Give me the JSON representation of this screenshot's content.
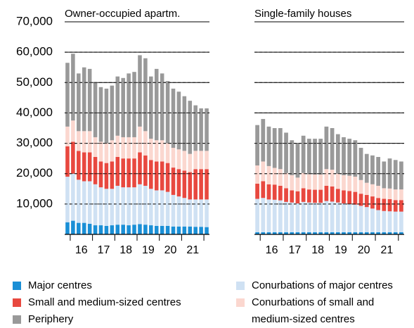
{
  "chart_data": [
    {
      "type": "stacked_bar",
      "title": "Owner-occupied apartm.",
      "categories": [
        null,
        null,
        "16",
        null,
        null,
        null,
        "17",
        null,
        null,
        null,
        "18",
        null,
        null,
        null,
        "19",
        null,
        null,
        null,
        "20",
        null,
        null,
        null,
        "21",
        null,
        null,
        null
      ],
      "ylim": [
        0,
        70000
      ],
      "yticks": [
        {
          "value": 10000,
          "label": "10,000"
        },
        {
          "value": 20000,
          "label": "20,000"
        },
        {
          "value": 30000,
          "label": "30,000"
        },
        {
          "value": 40000,
          "label": "40,000"
        },
        {
          "value": 50000,
          "label": "50,000"
        },
        {
          "value": 60000,
          "label": "60,000"
        },
        {
          "value": 70000,
          "label": "70,000"
        }
      ],
      "grid": true,
      "series": [
        {
          "name": "Major centres",
          "color": "#1a8fd6",
          "values": [
            4000,
            4500,
            3800,
            3800,
            3500,
            3000,
            3000,
            2800,
            3000,
            3200,
            3200,
            3000,
            3200,
            3400,
            3200,
            3000,
            2800,
            2800,
            2800,
            2600,
            2600,
            2600,
            2600,
            2500,
            2500,
            2400
          ]
        },
        {
          "name": "Conurbations of major centres",
          "color": "#cfe1f3",
          "values": [
            15000,
            15500,
            14200,
            13700,
            14000,
            13500,
            12500,
            12200,
            12000,
            12800,
            12300,
            12500,
            12300,
            13100,
            12800,
            12000,
            11700,
            11700,
            11200,
            10400,
            9900,
            9400,
            8900,
            9000,
            9000,
            9100
          ]
        },
        {
          "name": "Small and medium-sized centres",
          "color": "#e8483f",
          "values": [
            10000,
            10500,
            9500,
            9500,
            9500,
            9000,
            8500,
            8500,
            9000,
            9500,
            9500,
            9500,
            9500,
            10500,
            10000,
            9500,
            9500,
            9500,
            9500,
            9000,
            9000,
            9000,
            9000,
            10000,
            10000,
            10000
          ]
        },
        {
          "name": "Conurbations of small and medium-sized centres",
          "color": "#fbd7cf",
          "values": [
            6500,
            7000,
            6500,
            7000,
            7000,
            6500,
            6500,
            6500,
            7000,
            7000,
            7000,
            7000,
            7000,
            8500,
            8000,
            7000,
            7000,
            7000,
            6500,
            6500,
            6500,
            6500,
            6000,
            6000,
            6000,
            6000
          ]
        },
        {
          "name": "Periphery",
          "color": "#999999",
          "values": [
            21000,
            22000,
            19000,
            21000,
            20500,
            18000,
            18000,
            18000,
            18000,
            19500,
            19500,
            21000,
            21500,
            23500,
            24000,
            20500,
            23500,
            22000,
            20500,
            19500,
            19000,
            18000,
            17500,
            15000,
            14000,
            14000
          ]
        }
      ]
    },
    {
      "type": "stacked_bar",
      "title": "Single-family houses",
      "categories": [
        null,
        null,
        "16",
        null,
        null,
        null,
        "17",
        null,
        null,
        null,
        "18",
        null,
        null,
        null,
        "19",
        null,
        null,
        null,
        "20",
        null,
        null,
        null,
        "21",
        null,
        null,
        null
      ],
      "ylim": [
        0,
        70000
      ],
      "grid": true,
      "series": [
        {
          "color": "#1a8fd6",
          "values": [
            700,
            700,
            700,
            700,
            700,
            700,
            700,
            700,
            700,
            700,
            700,
            700,
            700,
            700,
            700,
            700,
            700,
            700,
            700,
            700,
            700,
            700,
            700,
            700,
            700,
            700
          ]
        },
        {
          "color": "#cfe1f3",
          "values": [
            11000,
            11300,
            10800,
            10700,
            10500,
            10000,
            9800,
            9500,
            10000,
            9800,
            9700,
            9700,
            10300,
            10100,
            9800,
            9500,
            9300,
            9100,
            8700,
            8300,
            7800,
            7300,
            7000,
            6900,
            6800,
            6800
          ]
        },
        {
          "color": "#e8483f",
          "values": [
            5000,
            5500,
            5000,
            5000,
            4800,
            4500,
            4000,
            4000,
            4500,
            4300,
            4300,
            4300,
            5000,
            5000,
            4500,
            4300,
            4300,
            4200,
            4000,
            4000,
            4000,
            4000,
            4000,
            4000,
            3800,
            3800
          ]
        },
        {
          "color": "#fbd7cf",
          "values": [
            6000,
            6500,
            6000,
            5500,
            5500,
            5000,
            5000,
            4500,
            5000,
            5000,
            5000,
            5000,
            5500,
            5500,
            5000,
            5000,
            5000,
            5000,
            4500,
            4000,
            4000,
            4000,
            3500,
            3500,
            3500,
            3500
          ]
        },
        {
          "color": "#999999",
          "values": [
            13300,
            14000,
            13000,
            13100,
            13500,
            13300,
            11500,
            11300,
            12300,
            11700,
            11800,
            11800,
            14000,
            13700,
            13000,
            12500,
            12200,
            12000,
            10600,
            9500,
            9500,
            9500,
            8800,
            9900,
            9700,
            9200
          ]
        }
      ]
    }
  ]
}
